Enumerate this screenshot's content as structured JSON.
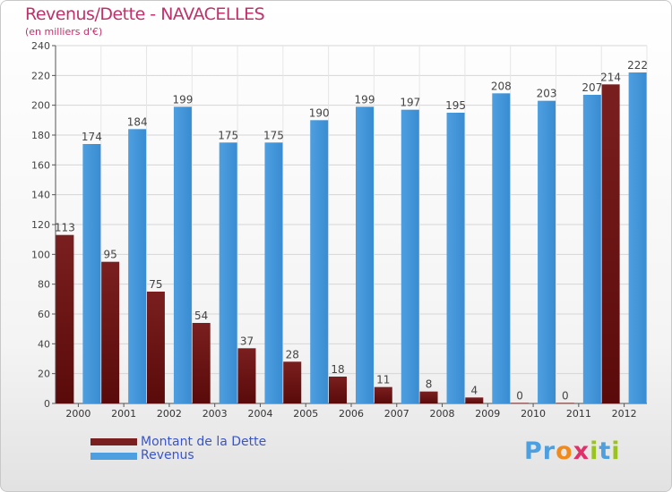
{
  "title": "Revenus/Dette - NAVACELLES",
  "subtitle": "(en milliers d'€)",
  "colors": {
    "dette": "#7a1f1f",
    "revenus": "#4d9fe0",
    "title": "#c0306a",
    "legend_text": "#3a55c8"
  },
  "logo": {
    "letters": [
      "P",
      "r",
      "o",
      "x",
      "i",
      "t",
      "i"
    ],
    "colors": [
      "#4d9fe0",
      "#4d9fe0",
      "#f08a1c",
      "#e0306a",
      "#9bc31e",
      "#4d9fe0",
      "#9bc31e"
    ]
  },
  "chart_data": {
    "type": "bar",
    "categories": [
      "2000",
      "2001",
      "2002",
      "2003",
      "2004",
      "2005",
      "2006",
      "2007",
      "2008",
      "2009",
      "2010",
      "2011",
      "2012"
    ],
    "series": [
      {
        "name": "Montant de la Dette",
        "values": [
          113,
          95,
          75,
          54,
          37,
          28,
          18,
          11,
          8,
          4,
          0,
          0,
          214
        ]
      },
      {
        "name": "Revenus",
        "values": [
          174,
          184,
          199,
          175,
          175,
          190,
          199,
          197,
          195,
          208,
          203,
          207,
          222
        ]
      }
    ],
    "ylim": [
      0,
      240
    ],
    "yticks": [
      0,
      20,
      40,
      60,
      80,
      100,
      120,
      140,
      160,
      180,
      200,
      220,
      240
    ],
    "grid": true,
    "legend": "bottom-left"
  }
}
